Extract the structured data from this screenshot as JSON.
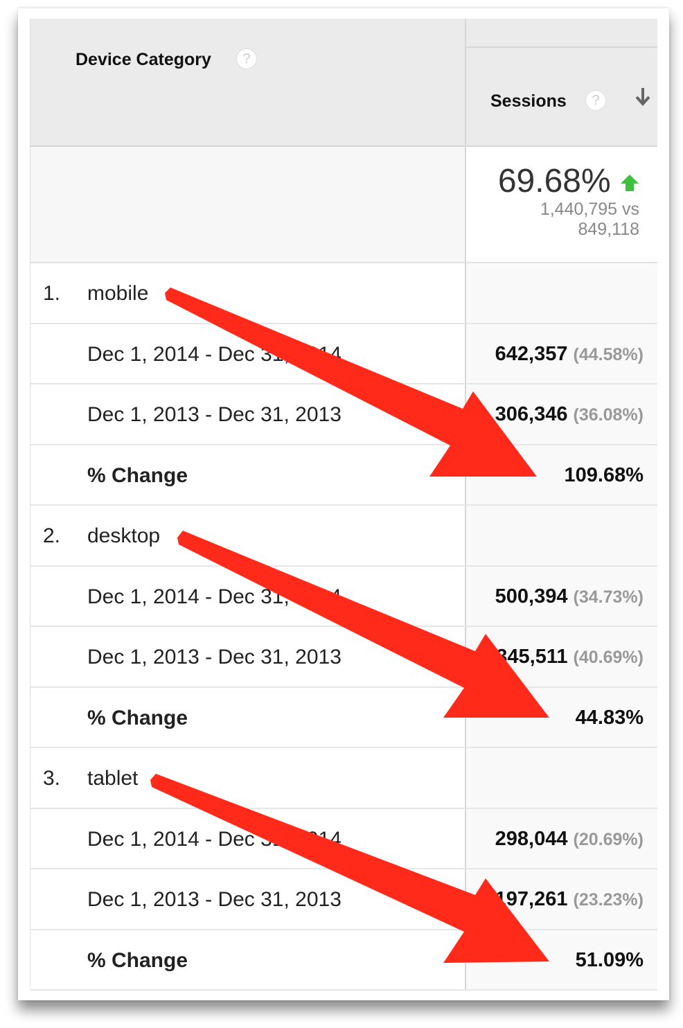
{
  "header": {
    "dimension": "Device Category",
    "metric": "Sessions",
    "help_icon": "question-circle-icon",
    "sort_icon": "arrow-down-icon"
  },
  "summary": {
    "change": "69.68%",
    "trend": "up",
    "trend_color": "#3fbf3f",
    "comparison_line1": "1,440,795 vs",
    "comparison_line2": "849,118"
  },
  "groups": [
    {
      "index": "1.",
      "name": "mobile",
      "rows": [
        {
          "label": "Dec 1, 2014 - Dec 31, 2014",
          "value": "642,357",
          "pct": "(44.58%)"
        },
        {
          "label": "Dec 1, 2013 - Dec 31, 2013",
          "value": "306,346",
          "pct": "(36.08%)"
        }
      ],
      "change_label": "% Change",
      "change": "109.68%"
    },
    {
      "index": "2.",
      "name": "desktop",
      "rows": [
        {
          "label": "Dec 1, 2014 - Dec 31, 2014",
          "value": "500,394",
          "pct": "(34.73%)"
        },
        {
          "label": "Dec 1, 2013 - Dec 31, 2013",
          "value": "345,511",
          "pct": "(40.69%)"
        }
      ],
      "change_label": "% Change",
      "change": "44.83%"
    },
    {
      "index": "3.",
      "name": "tablet",
      "rows": [
        {
          "label": "Dec 1, 2014 - Dec 31, 2014",
          "value": "298,044",
          "pct": "(20.69%)"
        },
        {
          "label": "Dec 1, 2013 - Dec 31, 2013",
          "value": "197,261",
          "pct": "(23.23%)"
        }
      ],
      "change_label": "% Change",
      "change": "51.09%"
    }
  ],
  "annotation_color": "#ff2a1a"
}
